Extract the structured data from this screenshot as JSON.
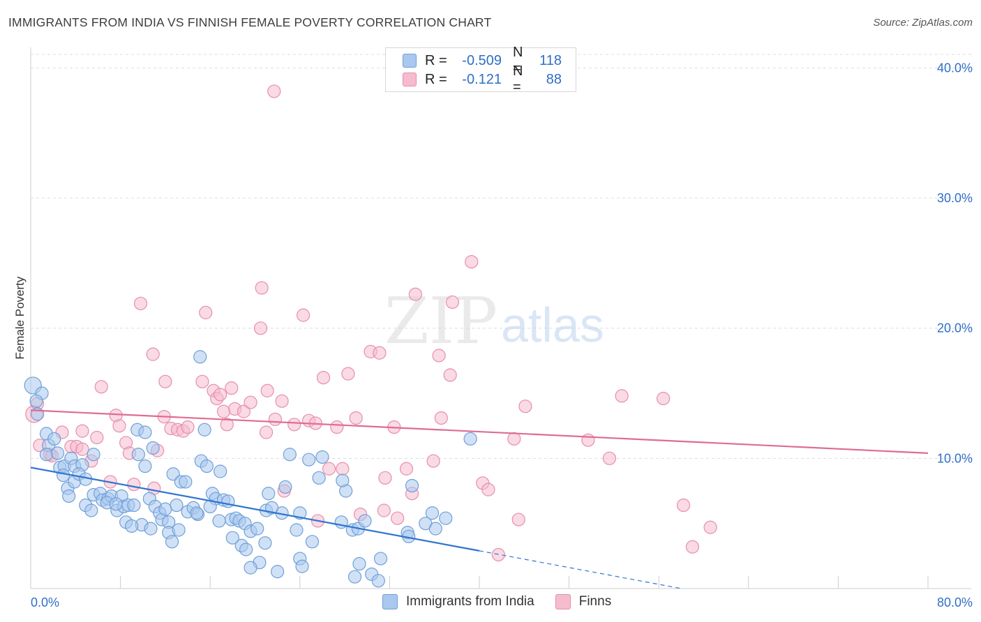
{
  "title": "IMMIGRANTS FROM INDIA VS FINNISH FEMALE POVERTY CORRELATION CHART",
  "source": "Source: ZipAtlas.com",
  "watermark": {
    "zip": "ZIP",
    "atlas": "atlas"
  },
  "colors": {
    "india_fill": "#a9c8ef",
    "india_stroke": "#6f9fd8",
    "india_line": "#2f74d0",
    "finns_fill": "#f6bccd",
    "finns_stroke": "#e58fab",
    "finns_line": "#e06b93",
    "axis_label": "#2f6fc6",
    "grid": "#dddddd"
  },
  "legend": {
    "india": {
      "r_label": "R =",
      "r_value": "-0.509",
      "n_label": "N =",
      "n_value": "118",
      "name": "Immigrants from India"
    },
    "finns": {
      "r_label": "R =",
      "r_value": "-0.121",
      "n_label": "N =",
      "n_value": "88",
      "name": "Finns"
    }
  },
  "chart_data": {
    "type": "scatter",
    "title": "IMMIGRANTS FROM INDIA VS FINNISH FEMALE POVERTY CORRELATION CHART",
    "xlabel": "",
    "ylabel": "Female Poverty",
    "xlim": [
      0,
      80
    ],
    "ylim": [
      0,
      42
    ],
    "x_tick_labels": [
      "0.0%",
      "80.0%"
    ],
    "y_ticks": [
      10,
      20,
      30,
      40
    ],
    "y_tick_labels": [
      "10.0%",
      "20.0%",
      "30.0%",
      "40.0%"
    ],
    "grid": true,
    "legend_position": "top-center",
    "series": [
      {
        "name": "Immigrants from India",
        "r": -0.509,
        "n": 118,
        "trend": {
          "x0": 0,
          "y0": 9.3,
          "x1": 40,
          "y1": 2.9,
          "dashed_to_x": 58,
          "dashed_to_y": 0.0
        },
        "points": [
          [
            0.2,
            15.6
          ],
          [
            1.0,
            15.0
          ],
          [
            0.5,
            14.4
          ],
          [
            0.6,
            13.4
          ],
          [
            1.4,
            11.9
          ],
          [
            1.6,
            11.0
          ],
          [
            2.1,
            11.5
          ],
          [
            1.4,
            10.3
          ],
          [
            2.4,
            10.4
          ],
          [
            2.6,
            9.3
          ],
          [
            3.0,
            9.4
          ],
          [
            3.6,
            10.0
          ],
          [
            3.9,
            9.4
          ],
          [
            4.6,
            9.5
          ],
          [
            5.6,
            10.3
          ],
          [
            2.9,
            8.7
          ],
          [
            3.3,
            7.7
          ],
          [
            3.9,
            8.2
          ],
          [
            4.3,
            8.8
          ],
          [
            4.9,
            8.4
          ],
          [
            3.4,
            7.1
          ],
          [
            4.9,
            6.4
          ],
          [
            5.4,
            6.0
          ],
          [
            5.6,
            7.2
          ],
          [
            6.2,
            7.3
          ],
          [
            6.4,
            6.8
          ],
          [
            6.9,
            6.9
          ],
          [
            7.2,
            7.1
          ],
          [
            7.7,
            6.0
          ],
          [
            8.1,
            7.1
          ],
          [
            8.3,
            6.3
          ],
          [
            8.7,
            6.4
          ],
          [
            9.2,
            6.4
          ],
          [
            8.5,
            5.1
          ],
          [
            9.6,
            10.3
          ],
          [
            9.5,
            12.2
          ],
          [
            10.2,
            12.0
          ],
          [
            10.2,
            9.4
          ],
          [
            10.9,
            10.8
          ],
          [
            10.6,
            6.9
          ],
          [
            11.1,
            6.3
          ],
          [
            11.5,
            5.8
          ],
          [
            11.7,
            5.3
          ],
          [
            12.0,
            6.1
          ],
          [
            9.9,
            4.9
          ],
          [
            10.7,
            4.6
          ],
          [
            12.3,
            5.1
          ],
          [
            12.3,
            4.3
          ],
          [
            12.6,
            3.6
          ],
          [
            12.7,
            8.8
          ],
          [
            13.2,
            4.5
          ],
          [
            13.0,
            6.4
          ],
          [
            13.4,
            8.2
          ],
          [
            13.8,
            8.2
          ],
          [
            14.0,
            5.9
          ],
          [
            14.5,
            6.2
          ],
          [
            14.9,
            5.7
          ],
          [
            15.1,
            17.8
          ],
          [
            15.5,
            12.2
          ],
          [
            15.2,
            9.8
          ],
          [
            15.7,
            9.4
          ],
          [
            16.2,
            7.3
          ],
          [
            16.5,
            6.9
          ],
          [
            16.9,
            9.0
          ],
          [
            17.2,
            6.8
          ],
          [
            17.6,
            6.7
          ],
          [
            16.8,
            5.2
          ],
          [
            17.9,
            5.3
          ],
          [
            18.3,
            5.4
          ],
          [
            18.6,
            5.2
          ],
          [
            19.1,
            5.0
          ],
          [
            19.6,
            4.4
          ],
          [
            20.2,
            4.6
          ],
          [
            18.8,
            3.3
          ],
          [
            19.2,
            3.0
          ],
          [
            20.4,
            2.0
          ],
          [
            19.6,
            1.6
          ],
          [
            21.0,
            6.0
          ],
          [
            21.2,
            7.3
          ],
          [
            22.4,
            5.8
          ],
          [
            22.7,
            7.8
          ],
          [
            23.1,
            10.3
          ],
          [
            23.7,
            4.5
          ],
          [
            24.0,
            5.8
          ],
          [
            24.8,
            9.9
          ],
          [
            24.0,
            2.3
          ],
          [
            24.2,
            1.7
          ],
          [
            25.7,
            8.5
          ],
          [
            25.1,
            3.6
          ],
          [
            27.7,
            5.1
          ],
          [
            28.7,
            4.5
          ],
          [
            29.2,
            4.6
          ],
          [
            29.8,
            5.2
          ],
          [
            28.9,
            0.9
          ],
          [
            29.3,
            1.9
          ],
          [
            30.4,
            1.1
          ],
          [
            31.2,
            2.3
          ],
          [
            31.0,
            0.6
          ],
          [
            33.6,
            4.3
          ],
          [
            33.7,
            4.0
          ],
          [
            34.0,
            7.9
          ],
          [
            35.2,
            5.0
          ],
          [
            35.8,
            5.8
          ],
          [
            36.1,
            4.6
          ],
          [
            37.0,
            5.4
          ],
          [
            39.2,
            11.5
          ],
          [
            28.1,
            7.5
          ],
          [
            22.0,
            1.3
          ],
          [
            26.0,
            10.1
          ],
          [
            27.8,
            8.3
          ],
          [
            6.8,
            6.6
          ],
          [
            7.6,
            6.5
          ],
          [
            14.8,
            5.8
          ],
          [
            16.0,
            6.3
          ],
          [
            18.0,
            3.9
          ],
          [
            21.5,
            6.2
          ],
          [
            9.0,
            4.8
          ],
          [
            20.9,
            3.5
          ]
        ]
      },
      {
        "name": "Finns",
        "r": -0.121,
        "n": 88,
        "trend": {
          "x0": 0,
          "y0": 13.7,
          "x1": 80,
          "y1": 10.4
        },
        "points": [
          [
            0.3,
            13.4
          ],
          [
            0.8,
            11.0
          ],
          [
            1.7,
            10.3
          ],
          [
            1.9,
            10.2
          ],
          [
            2.8,
            12.0
          ],
          [
            3.6,
            10.9
          ],
          [
            4.1,
            10.9
          ],
          [
            4.6,
            12.1
          ],
          [
            4.6,
            10.7
          ],
          [
            5.4,
            9.8
          ],
          [
            5.9,
            11.6
          ],
          [
            6.3,
            15.5
          ],
          [
            7.1,
            8.2
          ],
          [
            7.6,
            13.3
          ],
          [
            7.9,
            12.5
          ],
          [
            8.5,
            11.2
          ],
          [
            8.8,
            10.4
          ],
          [
            9.2,
            8.0
          ],
          [
            9.8,
            21.9
          ],
          [
            10.9,
            18.0
          ],
          [
            11.3,
            10.6
          ],
          [
            11.9,
            13.2
          ],
          [
            12.0,
            15.9
          ],
          [
            12.5,
            12.3
          ],
          [
            13.1,
            12.2
          ],
          [
            13.6,
            12.1
          ],
          [
            14.0,
            12.4
          ],
          [
            15.3,
            15.9
          ],
          [
            15.6,
            21.2
          ],
          [
            16.3,
            15.2
          ],
          [
            16.6,
            14.6
          ],
          [
            16.9,
            14.9
          ],
          [
            17.5,
            12.6
          ],
          [
            17.9,
            15.4
          ],
          [
            18.2,
            13.8
          ],
          [
            19.0,
            13.6
          ],
          [
            19.6,
            14.3
          ],
          [
            20.5,
            20.0
          ],
          [
            20.6,
            23.1
          ],
          [
            21.1,
            15.2
          ],
          [
            21.8,
            13.0
          ],
          [
            22.4,
            14.4
          ],
          [
            22.6,
            7.5
          ],
          [
            23.5,
            12.6
          ],
          [
            24.3,
            21.0
          ],
          [
            24.8,
            12.9
          ],
          [
            25.4,
            12.7
          ],
          [
            26.1,
            16.2
          ],
          [
            26.6,
            9.2
          ],
          [
            27.3,
            12.4
          ],
          [
            27.8,
            9.2
          ],
          [
            28.3,
            16.5
          ],
          [
            29.0,
            13.1
          ],
          [
            29.4,
            5.7
          ],
          [
            30.3,
            18.2
          ],
          [
            31.1,
            18.1
          ],
          [
            31.5,
            6.0
          ],
          [
            31.6,
            8.5
          ],
          [
            32.4,
            12.4
          ],
          [
            32.7,
            5.4
          ],
          [
            33.5,
            9.2
          ],
          [
            34.0,
            7.3
          ],
          [
            34.3,
            22.6
          ],
          [
            35.9,
            9.8
          ],
          [
            36.4,
            17.9
          ],
          [
            36.6,
            13.1
          ],
          [
            37.4,
            16.4
          ],
          [
            37.6,
            22.0
          ],
          [
            39.3,
            25.1
          ],
          [
            40.3,
            8.1
          ],
          [
            40.8,
            7.6
          ],
          [
            41.7,
            2.6
          ],
          [
            43.1,
            11.5
          ],
          [
            43.5,
            5.3
          ],
          [
            44.1,
            14.0
          ],
          [
            49.7,
            11.4
          ],
          [
            51.6,
            10.0
          ],
          [
            52.7,
            14.8
          ],
          [
            56.4,
            14.6
          ],
          [
            58.2,
            6.4
          ],
          [
            60.6,
            4.7
          ],
          [
            59.0,
            3.2
          ],
          [
            21.7,
            38.2
          ],
          [
            0.6,
            14.2
          ],
          [
            11.0,
            7.7
          ],
          [
            17.2,
            13.6
          ],
          [
            25.6,
            5.2
          ],
          [
            21.0,
            12.0
          ]
        ]
      }
    ]
  }
}
